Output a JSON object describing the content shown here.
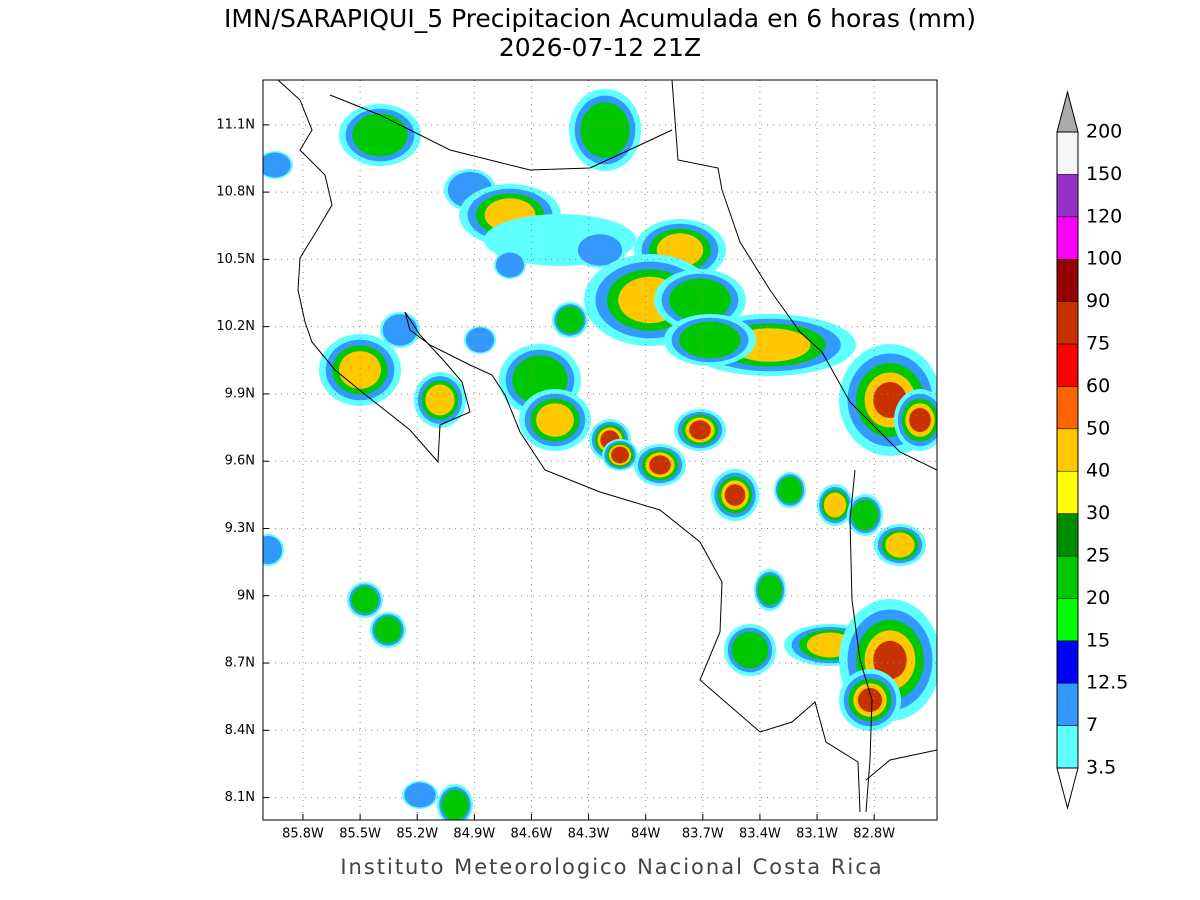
{
  "title": "IMN/SARAPIQUI_5 Precipitacion Acumulada en 6 horas (mm)",
  "subtitle": "2026-07-12 21Z",
  "map": {
    "xlim": [
      -86.01,
      -82.47
    ],
    "ylim": [
      8.0,
      11.3
    ],
    "grid": true,
    "xticks": [
      {
        "value": -85.8,
        "label": "85.8W"
      },
      {
        "value": -85.5,
        "label": "85.5W"
      },
      {
        "value": -85.2,
        "label": "85.2W"
      },
      {
        "value": -84.9,
        "label": "84.9W"
      },
      {
        "value": -84.6,
        "label": "84.6W"
      },
      {
        "value": -84.3,
        "label": "84.3W"
      },
      {
        "value": -84.0,
        "label": "84W"
      },
      {
        "value": -83.7,
        "label": "83.7W"
      },
      {
        "value": -83.4,
        "label": "83.4W"
      },
      {
        "value": -83.1,
        "label": "83.1W"
      },
      {
        "value": -82.8,
        "label": "82.8W"
      }
    ],
    "yticks": [
      {
        "value": 8.1,
        "label": "8.1N"
      },
      {
        "value": 8.4,
        "label": "8.4N"
      },
      {
        "value": 8.7,
        "label": "8.7N"
      },
      {
        "value": 9.0,
        "label": "9N"
      },
      {
        "value": 9.3,
        "label": "9.3N"
      },
      {
        "value": 9.6,
        "label": "9.6N"
      },
      {
        "value": 9.9,
        "label": "9.9N"
      },
      {
        "value": 10.2,
        "label": "10.2N"
      },
      {
        "value": 10.5,
        "label": "10.5N"
      },
      {
        "value": 10.8,
        "label": "10.8N"
      },
      {
        "value": 11.1,
        "label": "11.1N"
      }
    ]
  },
  "colorbar": {
    "levels": [
      3.5,
      7,
      12.5,
      15,
      20,
      25,
      30,
      40,
      50,
      60,
      75,
      90,
      100,
      120,
      150,
      200
    ],
    "colors": [
      "#ffffff",
      "#5fffff",
      "#3399ff",
      "#0000ff",
      "#00ff00",
      "#00c800",
      "#008c00",
      "#ffff00",
      "#ffc800",
      "#ff6400",
      "#ff0000",
      "#c83200",
      "#960000",
      "#ff00ff",
      "#9632c8",
      "#f5f5f5",
      "#aaaaaa"
    ]
  },
  "credit": "Instituto Meteorologico Nacional Costa Rica"
}
